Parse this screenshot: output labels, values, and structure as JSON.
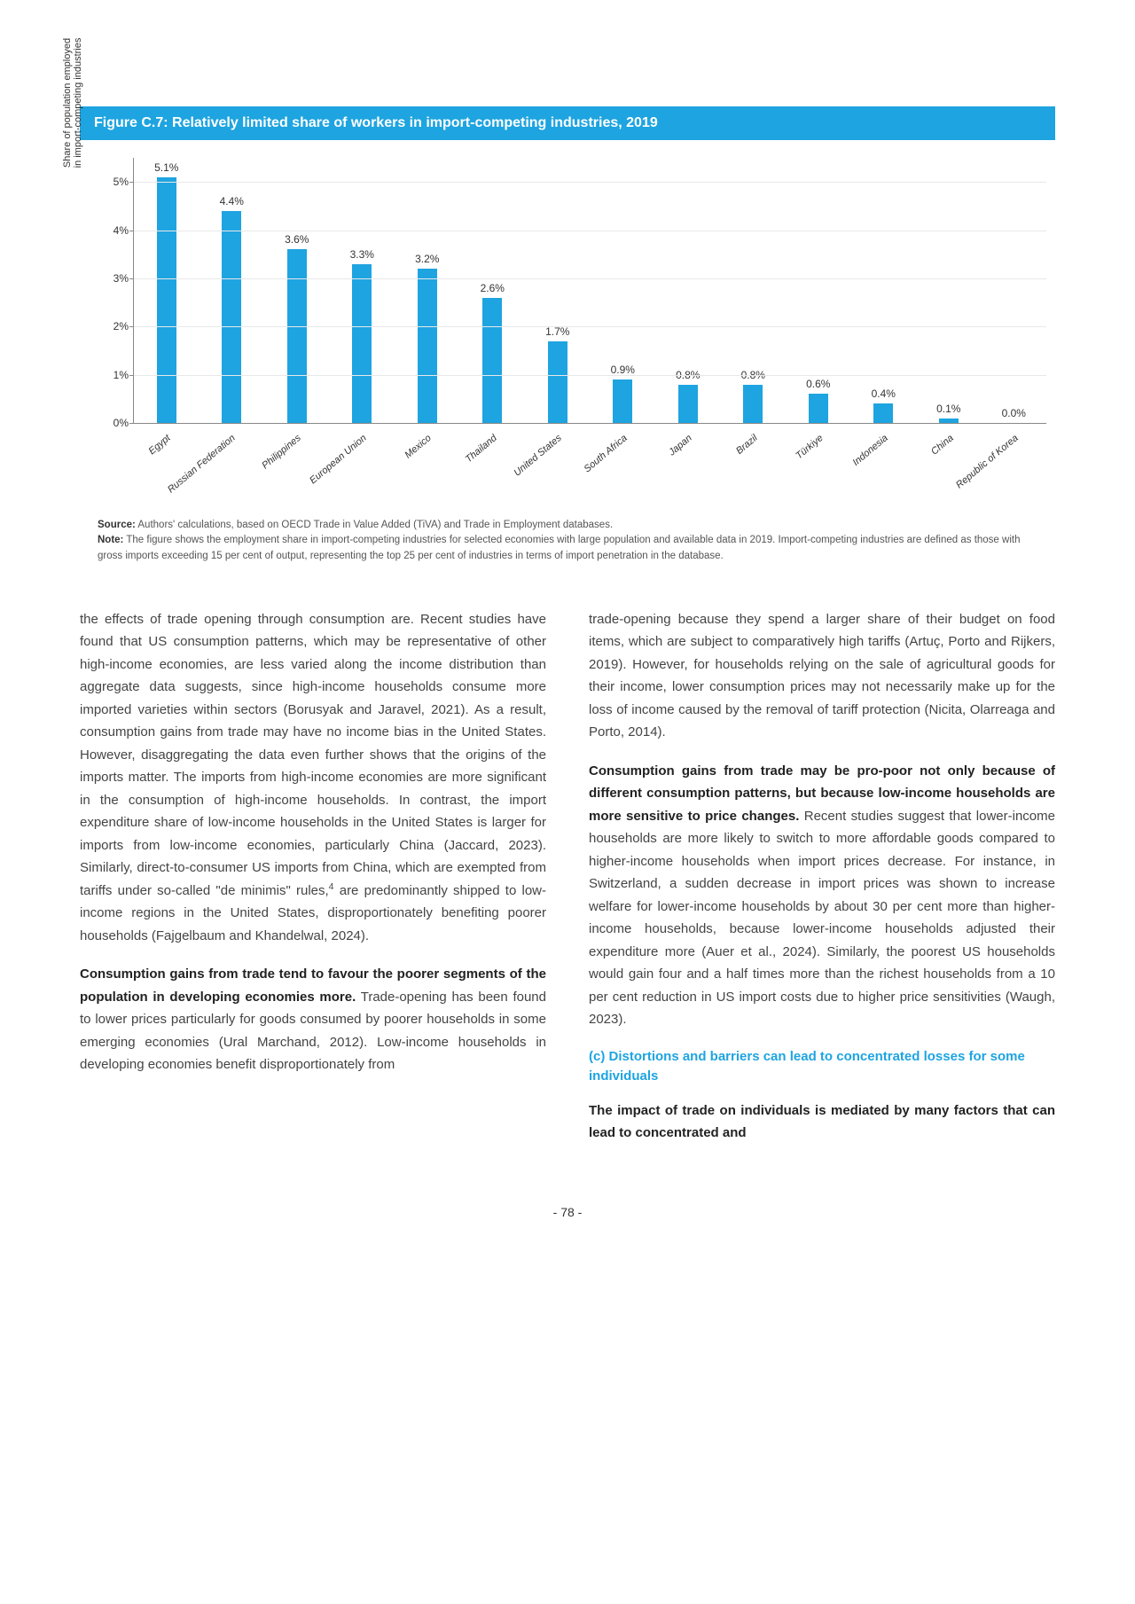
{
  "figure": {
    "title": "Figure C.7: Relatively limited share of workers in import-competing industries, 2019",
    "yaxis_label": "Share of population employed\nin import-competing industries",
    "bar_color": "#1ea4e0",
    "ymax": 5.5,
    "yticks": [
      {
        "v": 0,
        "label": "0%"
      },
      {
        "v": 1,
        "label": "1%"
      },
      {
        "v": 2,
        "label": "2%"
      },
      {
        "v": 3,
        "label": "3%"
      },
      {
        "v": 4,
        "label": "4%"
      },
      {
        "v": 5,
        "label": "5%"
      }
    ],
    "bars": [
      {
        "label": "Egypt",
        "value": 5.1,
        "value_label": "5.1%"
      },
      {
        "label": "Russian Federation",
        "value": 4.4,
        "value_label": "4.4%"
      },
      {
        "label": "Philippines",
        "value": 3.6,
        "value_label": "3.6%"
      },
      {
        "label": "European Union",
        "value": 3.3,
        "value_label": "3.3%"
      },
      {
        "label": "Mexico",
        "value": 3.2,
        "value_label": "3.2%"
      },
      {
        "label": "Thailand",
        "value": 2.6,
        "value_label": "2.6%"
      },
      {
        "label": "United States",
        "value": 1.7,
        "value_label": "1.7%"
      },
      {
        "label": "South Africa",
        "value": 0.9,
        "value_label": "0.9%"
      },
      {
        "label": "Japan",
        "value": 0.8,
        "value_label": "0.8%"
      },
      {
        "label": "Brazil",
        "value": 0.8,
        "value_label": "0.8%"
      },
      {
        "label": "Türkiye",
        "value": 0.6,
        "value_label": "0.6%"
      },
      {
        "label": "Indonesia",
        "value": 0.4,
        "value_label": "0.4%"
      },
      {
        "label": "China",
        "value": 0.1,
        "value_label": "0.1%"
      },
      {
        "label": "Republic of Korea",
        "value": 0.0,
        "value_label": "0.0%"
      }
    ],
    "source": "Authors' calculations, based on OECD Trade in Value Added (TiVA) and Trade in Employment databases.",
    "note": "The figure shows the employment share in import-competing industries for selected economies with large population and available data in 2019. Import-competing industries are defined as those with gross imports exceeding 15 per cent of output, representing the top 25 per cent of industries in terms of import penetration in the database."
  },
  "body": {
    "col1_p1": "the effects of trade opening through consumption are. Recent studies have found that US consumption patterns, which may be representative of other high-income economies, are less varied along the income distribution than aggregate data suggests, since high-income households consume more imported varieties within sectors (Borusyak and Jaravel, 2021). As a result, consumption gains from trade may have no income bias in the United States. However, disaggregating the data even further shows that the origins of the imports matter. The imports from high-income economies are more significant in the consumption of high-income households. In contrast, the import expenditure share of low-income households in the United States is larger for imports from low-income economies, particularly China (Jaccard, 2023). Similarly, direct-to-consumer US imports from China, which are exempted from tariffs under so-called \"de minimis\" rules,",
    "col1_p1_tail": " are predominantly shipped to low-income regions in the United States, disproportionately benefiting poorer households (Fajgelbaum and Khandelwal, 2024).",
    "col1_p2_bold": "Consumption gains from trade tend to favour the poorer segments of the population in developing economies more.",
    "col1_p2_rest": " Trade-opening has been found to lower prices particularly for goods consumed by poorer households in some emerging economies (Ural Marchand, 2012). Low-income households in developing economies benefit disproportionately from",
    "col2_p1": "trade-opening because they spend a larger share of their budget on food items, which are subject to comparatively high tariffs (Artuç, Porto and Rijkers, 2019). However, for households relying on the sale of agricultural goods for their income, lower consumption prices may not necessarily make up for the loss of income caused by the removal of tariff protection (Nicita, Olarreaga and Porto, 2014).",
    "col2_p2_bold": "Consumption gains from trade may be pro-poor not only because of different consumption patterns, but because low-income households are more sensitive to price changes.",
    "col2_p2_rest": " Recent studies suggest that lower-income households are more likely to switch to more affordable goods compared to higher-income households when import prices decrease. For instance, in Switzerland, a sudden decrease in import prices was shown to increase welfare for lower-income households by about 30 per cent more than higher-income households, because lower-income households adjusted their expenditure more (Auer et al., 2024). Similarly, the poorest US households would gain four and a half times more than the richest households from a 10 per cent reduction in US import costs due to higher price sensitivities (Waugh, 2023).",
    "subheading": "(c) Distortions and barriers can lead to concentrated losses for some individuals",
    "col2_p3_bold": "The impact of trade on individuals is mediated by many factors that can lead to concentrated and"
  },
  "pagenum": "- 78 -",
  "labels": {
    "source": "Source:",
    "note": "Note:",
    "footnote4": "4"
  }
}
